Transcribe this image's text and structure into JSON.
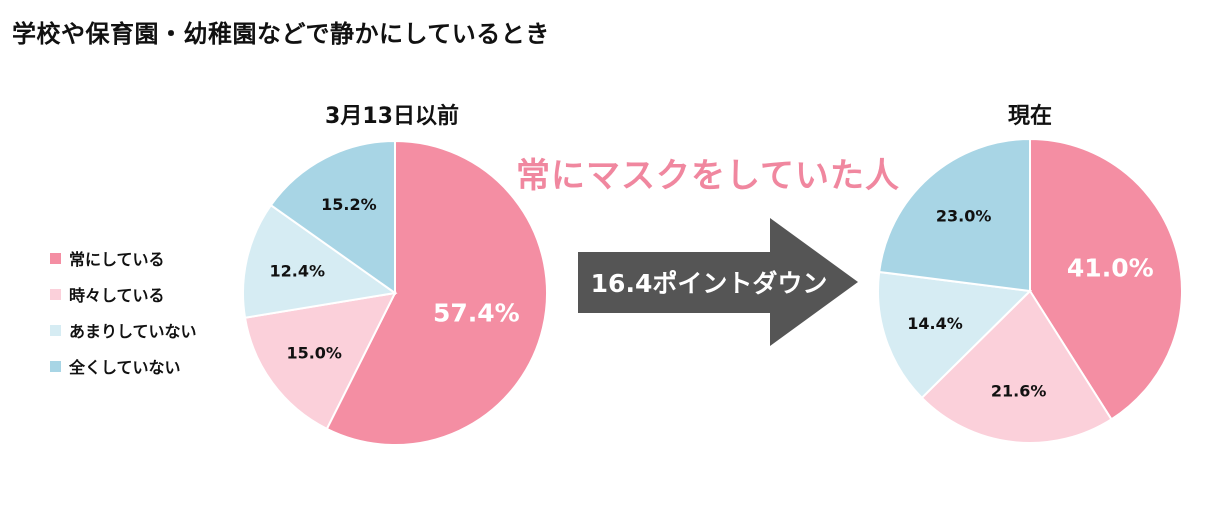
{
  "page": {
    "title": "学校や保育園・幼稚園などで静かにしているとき"
  },
  "headline": "常にマスクをしていた人",
  "arrow": {
    "label": "16.4ポイントダウン"
  },
  "legend": [
    {
      "label": "常にしている",
      "color": "#f48ea3"
    },
    {
      "label": "時々している",
      "color": "#fbd0da"
    },
    {
      "label": "あまりしていない",
      "color": "#d6ecf3"
    },
    {
      "label": "全くしていない",
      "color": "#a8d5e5"
    }
  ],
  "chart_data": [
    {
      "type": "pie",
      "title": "3月13日以前",
      "slices": [
        {
          "label": "常にしている",
          "value": 57.4,
          "text": "57.4%",
          "color": "#f48ea3"
        },
        {
          "label": "時々している",
          "value": 15.0,
          "text": "15.0%",
          "color": "#fbd0da"
        },
        {
          "label": "あまりしていない",
          "value": 12.4,
          "text": "12.4%",
          "color": "#d6ecf3"
        },
        {
          "label": "全くしていない",
          "value": 15.2,
          "text": "15.2%",
          "color": "#a8d5e5"
        }
      ]
    },
    {
      "type": "pie",
      "title": "現在",
      "slices": [
        {
          "label": "常にしている",
          "value": 41.0,
          "text": "41.0%",
          "color": "#f48ea3"
        },
        {
          "label": "時々している",
          "value": 21.6,
          "text": "21.6%",
          "color": "#fbd0da"
        },
        {
          "label": "あまりしていない",
          "value": 14.4,
          "text": "14.4%",
          "color": "#d6ecf3"
        },
        {
          "label": "全くしていない",
          "value": 23.0,
          "text": "23.0%",
          "color": "#a8d5e5"
        }
      ]
    }
  ]
}
